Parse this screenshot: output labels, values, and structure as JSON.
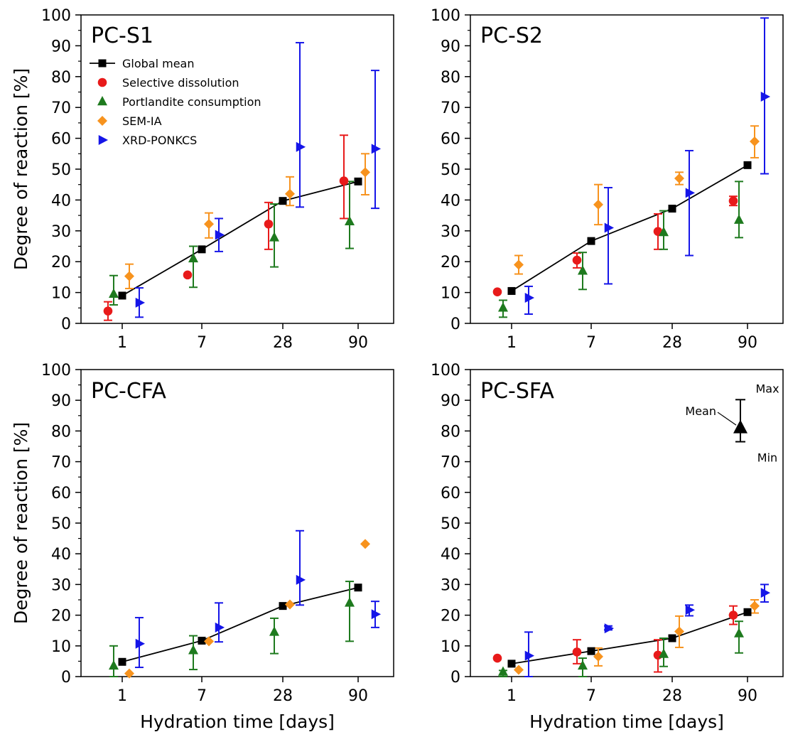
{
  "chart_data": [
    {
      "type": "scatter",
      "title": "PC-S1",
      "xlabel": "",
      "ylabel": "Degree of reaction [%]",
      "categories": [
        "1",
        "7",
        "28",
        "90"
      ],
      "ylim": [
        0,
        100
      ],
      "yticks": [
        0,
        10,
        20,
        30,
        40,
        50,
        60,
        70,
        80,
        90,
        100
      ],
      "legend": {
        "position": "top-left",
        "entries": [
          "Global mean",
          "Selective dissolution",
          "Portlandite consumption",
          "SEM-IA",
          "XRD-PONKCS"
        ]
      },
      "series": [
        {
          "name": "Global mean",
          "color": "#000000",
          "marker": "square",
          "values": [
            9,
            24,
            39.7,
            46
          ]
        },
        {
          "name": "Selective dissolution",
          "color": "#e81a1a",
          "marker": "circle",
          "values": [
            4,
            15.7,
            32.2,
            46.2
          ],
          "min": [
            1,
            15.7,
            24,
            34
          ],
          "max": [
            7,
            15.7,
            39.2,
            61
          ]
        },
        {
          "name": "Portlandite consumption",
          "color": "#1e7a1e",
          "marker": "triangle-up",
          "values": [
            9.5,
            21,
            27.8,
            33
          ],
          "min": [
            6,
            11.7,
            18.3,
            24.3
          ],
          "max": [
            15.5,
            25,
            38.7,
            46
          ]
        },
        {
          "name": "SEM-IA",
          "color": "#f7931e",
          "marker": "diamond",
          "values": [
            15.3,
            32.2,
            42,
            49
          ],
          "min": [
            11.3,
            27.7,
            38.2,
            41.7
          ],
          "max": [
            19.2,
            35.8,
            47.5,
            55
          ]
        },
        {
          "name": "XRD-PONKCS",
          "color": "#1515e8",
          "marker": "triangle-right",
          "values": [
            6.7,
            28.7,
            57.2,
            56.6
          ],
          "min": [
            2,
            23.3,
            37.7,
            37.3
          ],
          "max": [
            11.5,
            34,
            91,
            82
          ]
        }
      ]
    },
    {
      "type": "scatter",
      "title": "PC-S2",
      "xlabel": "",
      "ylabel": "",
      "categories": [
        "1",
        "7",
        "28",
        "90"
      ],
      "ylim": [
        0,
        100
      ],
      "yticks": [
        0,
        10,
        20,
        30,
        40,
        50,
        60,
        70,
        80,
        90,
        100
      ],
      "series": [
        {
          "name": "Global mean",
          "color": "#000000",
          "marker": "square",
          "values": [
            10.5,
            26.7,
            37.2,
            51.3
          ]
        },
        {
          "name": "Selective dissolution",
          "color": "#e81a1a",
          "marker": "circle",
          "values": [
            10.2,
            20.5,
            29.8,
            39.7
          ],
          "min": [
            10.2,
            18,
            24,
            38.2
          ],
          "max": [
            10.2,
            22.8,
            35.5,
            41.2
          ]
        },
        {
          "name": "Portlandite consumption",
          "color": "#1e7a1e",
          "marker": "triangle-up",
          "values": [
            5,
            17,
            29.5,
            33.5
          ],
          "min": [
            2,
            11,
            24,
            27.8
          ],
          "max": [
            7.5,
            23,
            36.5,
            46
          ]
        },
        {
          "name": "SEM-IA",
          "color": "#f7931e",
          "marker": "diamond",
          "values": [
            19,
            38.5,
            47,
            59
          ],
          "min": [
            16,
            32,
            45,
            53.7
          ],
          "max": [
            22,
            45,
            49,
            64
          ]
        },
        {
          "name": "XRD-PONKCS",
          "color": "#1515e8",
          "marker": "triangle-right",
          "values": [
            8.3,
            31,
            42.3,
            73.5
          ],
          "min": [
            3,
            12.8,
            22,
            48.5
          ],
          "max": [
            12,
            44,
            56,
            99
          ]
        }
      ]
    },
    {
      "type": "scatter",
      "title": "PC-CFA",
      "xlabel": "Hydration time [days]",
      "ylabel": "Degree of reaction [%]",
      "categories": [
        "1",
        "7",
        "28",
        "90"
      ],
      "ylim": [
        0,
        100
      ],
      "yticks": [
        0,
        10,
        20,
        30,
        40,
        50,
        60,
        70,
        80,
        90,
        100
      ],
      "series": [
        {
          "name": "Global mean",
          "color": "#000000",
          "marker": "square",
          "values": [
            4.8,
            11.7,
            23,
            29
          ]
        },
        {
          "name": "Portlandite consumption",
          "color": "#1e7a1e",
          "marker": "triangle-up",
          "values": [
            3.5,
            8.5,
            14.5,
            24
          ],
          "min": [
            0,
            2.3,
            7.5,
            11.5
          ],
          "max": [
            10,
            13.3,
            19,
            31
          ]
        },
        {
          "name": "SEM-IA",
          "color": "#f7931e",
          "marker": "diamond",
          "values": [
            1,
            11.5,
            23.5,
            43.2
          ],
          "min": [
            1,
            11.5,
            23.5,
            43.2
          ],
          "max": [
            1,
            11.5,
            23.5,
            43.2
          ]
        },
        {
          "name": "XRD-PONKCS",
          "color": "#1515e8",
          "marker": "triangle-right",
          "values": [
            10.7,
            16,
            31.5,
            20.3
          ],
          "min": [
            3,
            11.3,
            23.3,
            16
          ],
          "max": [
            19.2,
            24,
            47.5,
            24.5
          ]
        }
      ]
    },
    {
      "type": "scatter",
      "title": "PC-SFA",
      "xlabel": "Hydration time [days]",
      "ylabel": "",
      "categories": [
        "1",
        "7",
        "28",
        "90"
      ],
      "ylim": [
        0,
        100
      ],
      "yticks": [
        0,
        10,
        20,
        30,
        40,
        50,
        60,
        70,
        80,
        90,
        100
      ],
      "annotation": {
        "max_label": "Max",
        "mean_label": "Mean",
        "min_label": "Min",
        "mean": 81,
        "min": 76.5,
        "max": 90.2
      },
      "series": [
        {
          "name": "Global mean",
          "color": "#000000",
          "marker": "square",
          "values": [
            4.2,
            8.3,
            12.5,
            21
          ]
        },
        {
          "name": "Selective dissolution",
          "color": "#e81a1a",
          "marker": "circle",
          "values": [
            6,
            8,
            7,
            20
          ],
          "min": [
            6,
            4.2,
            1.5,
            17
          ],
          "max": [
            6,
            12,
            12,
            23
          ]
        },
        {
          "name": "Portlandite consumption",
          "color": "#1e7a1e",
          "marker": "triangle-up",
          "values": [
            1.5,
            3.5,
            7.3,
            14
          ],
          "min": [
            0,
            0,
            3.3,
            7.7
          ],
          "max": [
            2,
            6,
            12.5,
            18
          ]
        },
        {
          "name": "SEM-IA",
          "color": "#f7931e",
          "marker": "diamond",
          "values": [
            2.2,
            6.5,
            14.7,
            23
          ],
          "min": [
            2.2,
            3.5,
            9.5,
            20.7
          ],
          "max": [
            2.2,
            9.3,
            19.7,
            25
          ]
        },
        {
          "name": "XRD-PONKCS",
          "color": "#1515e8",
          "marker": "triangle-right",
          "values": [
            6.8,
            15.7,
            21.7,
            27.3
          ],
          "min": [
            0,
            15.2,
            19.8,
            24.3
          ],
          "max": [
            14.5,
            16.5,
            23.3,
            30
          ]
        }
      ]
    }
  ]
}
